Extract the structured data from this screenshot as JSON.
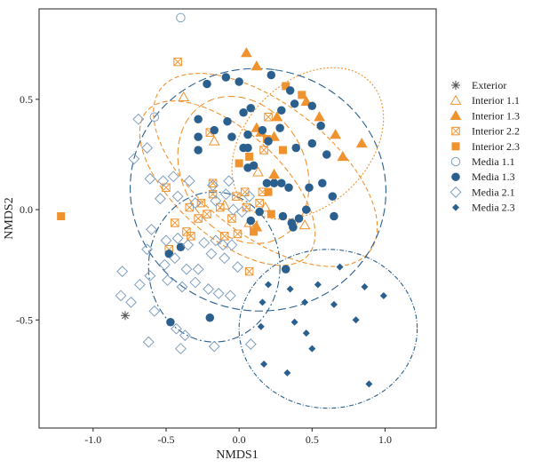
{
  "chart_data": {
    "type": "scatter",
    "xlabel": "NMDS1",
    "ylabel": "NMDS2",
    "xlim": [
      -1.37,
      1.35
    ],
    "ylim": [
      -0.99,
      0.91
    ],
    "xticks": [
      -1.0,
      -0.5,
      0.0,
      0.5,
      1.0
    ],
    "xtick_labels": [
      "-1.0",
      "-0.5",
      "0.0",
      "0.5",
      "1.0"
    ],
    "yticks": [
      -0.5,
      0.0,
      0.5
    ],
    "ytick_labels": [
      "-0.5",
      "0.0",
      "0.5"
    ],
    "grid": false,
    "legend_position": "right",
    "colors": {
      "orange": "#f0922e",
      "blue": "#2a5f8e",
      "lightblue": "#7f9fbf"
    },
    "series": [
      {
        "name": "Exterior",
        "marker": "asterisk",
        "color": "#555555",
        "points": [
          [
            -0.78,
            -0.48
          ]
        ]
      },
      {
        "name": "Interior 1.1",
        "marker": "triangle-open",
        "color": "#f0922e",
        "points": [
          [
            -0.38,
            0.51
          ],
          [
            -0.17,
            0.31
          ],
          [
            -0.1,
            0.02
          ],
          [
            0.07,
            -0.06
          ],
          [
            0.12,
            -0.08
          ],
          [
            0.24,
            0.13
          ],
          [
            0.13,
            0.17
          ],
          [
            0.18,
            0.01
          ],
          [
            0.45,
            -0.07
          ]
        ]
      },
      {
        "name": "Interior 1.3",
        "marker": "triangle",
        "color": "#f0922e",
        "points": [
          [
            0.05,
            0.71
          ],
          [
            0.12,
            0.65
          ],
          [
            0.46,
            0.49
          ],
          [
            0.55,
            0.42
          ],
          [
            0.66,
            0.34
          ],
          [
            0.71,
            0.24
          ],
          [
            0.84,
            0.3
          ],
          [
            0.12,
            0.37
          ],
          [
            0.15,
            0.35
          ],
          [
            0.24,
            0.33
          ],
          [
            0.26,
            0.42
          ],
          [
            0.12,
            -0.08
          ],
          [
            0.24,
            0.16
          ]
        ]
      },
      {
        "name": "Interior 2.2",
        "marker": "square-crossed",
        "color": "#f0922e",
        "points": [
          [
            -0.42,
            0.67
          ],
          [
            -0.2,
            0.35
          ],
          [
            -0.5,
            0.1
          ],
          [
            -0.48,
            -0.18
          ],
          [
            -0.44,
            -0.06
          ],
          [
            -0.36,
            -0.1
          ],
          [
            -0.34,
            0.01
          ],
          [
            -0.33,
            -0.12
          ],
          [
            -0.28,
            -0.04
          ],
          [
            -0.26,
            0.03
          ],
          [
            -0.22,
            -0.02
          ],
          [
            -0.18,
            0.07
          ],
          [
            -0.13,
            0.01
          ],
          [
            -0.1,
            -0.12
          ],
          [
            -0.05,
            -0.04
          ],
          [
            -0.02,
            0.06
          ],
          [
            -0.01,
            -0.11
          ],
          [
            0.04,
            0.08
          ],
          [
            0.05,
            0.01
          ],
          [
            0.1,
            -0.07
          ],
          [
            0.16,
            0.08
          ],
          [
            0.17,
            0.27
          ],
          [
            0.2,
            0.42
          ],
          [
            0.07,
            -0.28
          ],
          [
            0.14,
            0.03
          ],
          [
            -0.18,
            0.12
          ]
        ]
      },
      {
        "name": "Interior 2.3",
        "marker": "square",
        "color": "#f0922e",
        "points": [
          [
            -1.22,
            -0.03
          ],
          [
            0.32,
            0.56
          ],
          [
            0.43,
            0.52
          ],
          [
            0.19,
            0.32
          ],
          [
            0.07,
            0.24
          ],
          [
            0.0,
            0.21
          ],
          [
            0.3,
            0.27
          ],
          [
            0.2,
            0.08
          ],
          [
            0.22,
            -0.02
          ],
          [
            0.1,
            -0.1
          ]
        ]
      },
      {
        "name": "Media 1.1",
        "marker": "circle-open",
        "color": "#7f9fbf",
        "points": [
          [
            -0.58,
            0.42
          ],
          [
            -0.4,
            0.87
          ]
        ]
      },
      {
        "name": "Media 1.3",
        "marker": "circle",
        "color": "#2a5f8e",
        "points": [
          [
            -0.22,
            0.57
          ],
          [
            -0.09,
            0.6
          ],
          [
            0.0,
            0.58
          ],
          [
            0.22,
            0.61
          ],
          [
            0.38,
            0.48
          ],
          [
            0.35,
            0.54
          ],
          [
            0.5,
            0.47
          ],
          [
            0.56,
            0.38
          ],
          [
            -0.28,
            0.41
          ],
          [
            -0.17,
            0.36
          ],
          [
            -0.08,
            0.4
          ],
          [
            0.06,
            0.34
          ],
          [
            0.16,
            0.36
          ],
          [
            0.28,
            0.37
          ],
          [
            -0.28,
            0.33
          ],
          [
            -0.05,
            0.33
          ],
          [
            0.03,
            0.28
          ],
          [
            0.2,
            0.31
          ],
          [
            0.39,
            0.28
          ],
          [
            0.5,
            0.3
          ],
          [
            0.6,
            0.25
          ],
          [
            -0.28,
            0.27
          ],
          [
            0.06,
            0.28
          ],
          [
            0.03,
            0.44
          ],
          [
            0.08,
            0.46
          ],
          [
            0.29,
            0.45
          ],
          [
            0.48,
            0.1
          ],
          [
            0.57,
            0.12
          ],
          [
            0.64,
            0.06
          ],
          [
            0.1,
            0.2
          ],
          [
            0.19,
            0.12
          ],
          [
            0.29,
            0.12
          ],
          [
            0.34,
            0.1
          ],
          [
            0.46,
            0.0
          ],
          [
            0.65,
            -0.03
          ],
          [
            0.41,
            -0.04
          ],
          [
            0.37,
            -0.08
          ],
          [
            0.24,
            0.12
          ],
          [
            0.14,
            -0.01
          ],
          [
            0.08,
            -0.05
          ],
          [
            0.3,
            -0.03
          ],
          [
            0.06,
            0.19
          ],
          [
            0.36,
            -0.06
          ],
          [
            0.32,
            -0.27
          ],
          [
            -0.47,
            -0.51
          ],
          [
            -0.2,
            -0.49
          ],
          [
            -0.4,
            -0.17
          ],
          [
            -0.48,
            -0.2
          ]
        ]
      },
      {
        "name": "Media 2.1",
        "marker": "diamond-open",
        "color": "#7f9fbf",
        "points": [
          [
            -0.69,
            0.41
          ],
          [
            -0.63,
            0.28
          ],
          [
            -0.72,
            0.23
          ],
          [
            -0.61,
            0.14
          ],
          [
            -0.52,
            0.13
          ],
          [
            -0.45,
            0.15
          ],
          [
            -0.34,
            0.13
          ],
          [
            -0.18,
            0.11
          ],
          [
            -0.07,
            0.13
          ],
          [
            -0.54,
            0.05
          ],
          [
            -0.42,
            0.06
          ],
          [
            -0.3,
            0.03
          ],
          [
            -0.16,
            0.04
          ],
          [
            -0.09,
            0.07
          ],
          [
            -0.04,
            0.0
          ],
          [
            -0.6,
            -0.09
          ],
          [
            -0.5,
            -0.14
          ],
          [
            -0.42,
            -0.13
          ],
          [
            -0.35,
            -0.16
          ],
          [
            -0.24,
            -0.15
          ],
          [
            -0.16,
            -0.14
          ],
          [
            -0.11,
            -0.16
          ],
          [
            -0.63,
            -0.18
          ],
          [
            -0.51,
            -0.25
          ],
          [
            -0.44,
            -0.22
          ],
          [
            -0.36,
            -0.27
          ],
          [
            -0.28,
            -0.27
          ],
          [
            -0.19,
            -0.2
          ],
          [
            -0.1,
            -0.22
          ],
          [
            -0.01,
            -0.26
          ],
          [
            -0.8,
            -0.28
          ],
          [
            -0.68,
            -0.34
          ],
          [
            -0.61,
            -0.3
          ],
          [
            -0.49,
            -0.32
          ],
          [
            -0.39,
            -0.35
          ],
          [
            -0.3,
            -0.33
          ],
          [
            -0.21,
            -0.36
          ],
          [
            -0.14,
            -0.38
          ],
          [
            -0.06,
            -0.39
          ],
          [
            -0.81,
            -0.39
          ],
          [
            -0.74,
            -0.42
          ],
          [
            -0.58,
            -0.46
          ],
          [
            -0.43,
            -0.54
          ],
          [
            -0.37,
            -0.57
          ],
          [
            -0.62,
            -0.6
          ],
          [
            -0.4,
            -0.63
          ],
          [
            -0.17,
            -0.62
          ],
          [
            0.08,
            -0.61
          ],
          [
            0.02,
            -0.01
          ],
          [
            0.07,
            0.06
          ],
          [
            -0.05,
            -0.16
          ]
        ]
      },
      {
        "name": "Media 2.3",
        "marker": "diamond",
        "color": "#2a5f8e",
        "points": [
          [
            0.2,
            -0.34
          ],
          [
            0.35,
            -0.36
          ],
          [
            0.54,
            -0.34
          ],
          [
            0.69,
            -0.26
          ],
          [
            0.86,
            -0.35
          ],
          [
            0.99,
            -0.39
          ],
          [
            0.16,
            -0.42
          ],
          [
            0.45,
            -0.42
          ],
          [
            0.65,
            -0.43
          ],
          [
            0.38,
            -0.51
          ],
          [
            0.8,
            -0.5
          ],
          [
            0.15,
            -0.53
          ],
          [
            0.46,
            -0.56
          ],
          [
            0.5,
            -0.63
          ],
          [
            0.33,
            -0.74
          ],
          [
            0.89,
            -0.79
          ],
          [
            0.17,
            -0.7
          ]
        ]
      }
    ],
    "ellipses": [
      {
        "group": "Interior 1.1",
        "cx": 0.18,
        "cy": 0.18,
        "rx": 0.45,
        "ry": 0.6,
        "angle": 52,
        "stroke": "#f0922e",
        "dash": "5,3"
      },
      {
        "group": "Interior 1.3",
        "cx": 0.47,
        "cy": 0.3,
        "rx": 0.6,
        "ry": 0.28,
        "angle": 45,
        "stroke": "#f0922e",
        "dash": "2,2"
      },
      {
        "group": "Interior 2.2",
        "cx": -0.08,
        "cy": 0.12,
        "rx": 0.36,
        "ry": 0.49,
        "angle": 48,
        "stroke": "#f0922e",
        "dash": "6,3"
      },
      {
        "group": "Interior 2.3",
        "cx": 0.03,
        "cy": 0.18,
        "rx": 0.42,
        "ry": 0.35,
        "angle": 30,
        "stroke": "#f0922e",
        "dash": "8,4"
      },
      {
        "group": "Media 1.3",
        "cx": 0.13,
        "cy": 0.09,
        "rx": 0.83,
        "ry": 0.58,
        "angle": 82,
        "stroke": "#2a5f8e",
        "dash": "9,4"
      },
      {
        "group": "Media 2.1",
        "cx": -0.17,
        "cy": -0.26,
        "rx": 0.45,
        "ry": 0.34,
        "angle": 0,
        "stroke": "#2a5f8e",
        "dash": "8,3,2,3"
      },
      {
        "group": "Media 2.3",
        "cx": 0.61,
        "cy": -0.54,
        "rx": 0.61,
        "ry": 0.36,
        "angle": 0,
        "stroke": "#2a5f8e",
        "dash": "5,2,1,2"
      }
    ]
  }
}
